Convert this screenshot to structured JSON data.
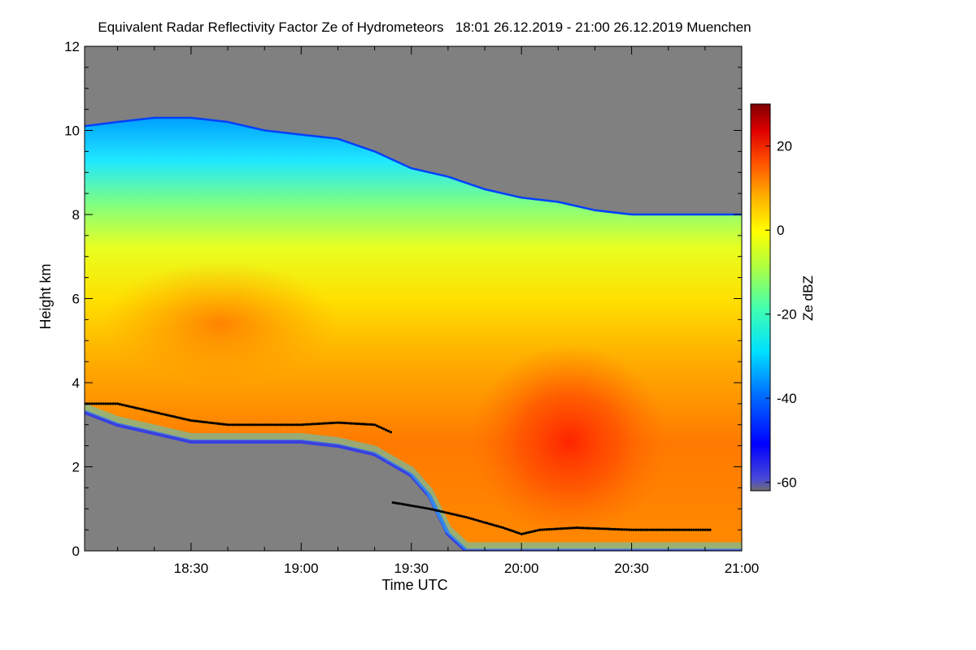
{
  "chart_data": {
    "type": "heatmap",
    "title": "Equivalent Radar Reflectivity Factor Ze of Hydrometeors   18:01 26.12.2019 - 21:00 26.12.2019 Muenchen",
    "xlabel": "Time UTC",
    "ylabel": "Height km",
    "colorbar_label": "Ze dBZ",
    "x_ticks": [
      "18:30",
      "19:00",
      "19:30",
      "20:00",
      "20:30",
      "21:00"
    ],
    "x_tick_minutes": [
      30,
      60,
      90,
      120,
      150,
      180
    ],
    "x_range_minutes": [
      1,
      180
    ],
    "y_ticks": [
      "0",
      "2",
      "4",
      "6",
      "8",
      "10",
      "12"
    ],
    "y_tick_values": [
      0,
      2,
      4,
      6,
      8,
      10,
      12
    ],
    "ylim": [
      0,
      12
    ],
    "colorbar_ticks": [
      "20",
      "0",
      "-20",
      "-40",
      "-60"
    ],
    "colorbar_tick_values": [
      20,
      0,
      -20,
      -40,
      -60
    ],
    "colorbar_range": [
      -62,
      30
    ],
    "colors": {
      "background_no_signal": "#808080",
      "colormap": [
        "#6e6e6e",
        "#4a4ad8",
        "#0000ff",
        "#0070ff",
        "#00e0ff",
        "#40ffb0",
        "#b0ff40",
        "#ffff00",
        "#ffb000",
        "#ff5000",
        "#e00000",
        "#800000"
      ]
    },
    "echo_top_km": [
      [
        1,
        10.1
      ],
      [
        10,
        10.2
      ],
      [
        20,
        10.3
      ],
      [
        30,
        10.3
      ],
      [
        40,
        10.2
      ],
      [
        50,
        10.0
      ],
      [
        60,
        9.9
      ],
      [
        70,
        9.8
      ],
      [
        80,
        9.5
      ],
      [
        90,
        9.1
      ],
      [
        100,
        8.9
      ],
      [
        110,
        8.6
      ],
      [
        120,
        8.4
      ],
      [
        130,
        8.3
      ],
      [
        140,
        8.1
      ],
      [
        150,
        8.0
      ],
      [
        160,
        8.0
      ],
      [
        170,
        8.0
      ],
      [
        180,
        8.0
      ]
    ],
    "echo_base_km": [
      [
        1,
        3.3
      ],
      [
        10,
        3.0
      ],
      [
        20,
        2.8
      ],
      [
        30,
        2.6
      ],
      [
        40,
        2.6
      ],
      [
        50,
        2.6
      ],
      [
        60,
        2.6
      ],
      [
        70,
        2.5
      ],
      [
        80,
        2.3
      ],
      [
        90,
        1.8
      ],
      [
        95,
        1.3
      ],
      [
        100,
        0.4
      ],
      [
        105,
        0.0
      ],
      [
        150,
        0.0
      ],
      [
        180,
        0.0
      ]
    ],
    "melting_layer_km": [
      [
        1,
        3.5
      ],
      [
        10,
        3.5
      ],
      [
        20,
        3.3
      ],
      [
        30,
        3.1
      ],
      [
        40,
        3.0
      ],
      [
        50,
        3.0
      ],
      [
        60,
        3.0
      ],
      [
        70,
        3.05
      ],
      [
        80,
        3.0
      ],
      [
        85,
        2.8
      ]
    ],
    "melting_layer_lower_km": [
      [
        85,
        1.15
      ],
      [
        95,
        1.0
      ],
      [
        105,
        0.8
      ],
      [
        115,
        0.55
      ],
      [
        120,
        0.4
      ],
      [
        125,
        0.5
      ],
      [
        135,
        0.55
      ],
      [
        150,
        0.5
      ],
      [
        165,
        0.5
      ],
      [
        172,
        0.5
      ]
    ]
  }
}
